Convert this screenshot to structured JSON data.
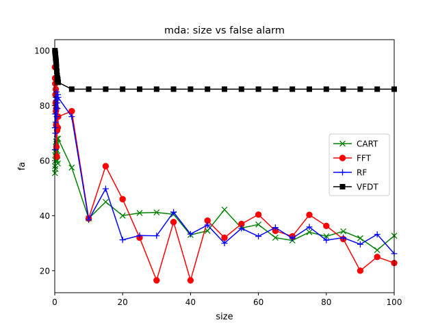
{
  "chart_data": {
    "type": "line",
    "title": "mda: size vs false alarm",
    "xlabel": "size",
    "ylabel": "fa",
    "xlim": [
      0,
      100
    ],
    "ylim": [
      12,
      104
    ],
    "xticks": [
      0,
      20,
      40,
      60,
      80,
      100
    ],
    "yticks": [
      20,
      40,
      60,
      80,
      100
    ],
    "grid": false,
    "legend_position": "center-right",
    "series": [
      {
        "name": "CART",
        "color": "#008000",
        "marker": "x",
        "x": [
          0.05,
          0.1,
          0.15,
          0.2,
          0.25,
          0.3,
          0.35,
          0.4,
          0.45,
          0.5,
          0.6,
          0.7,
          0.8,
          0.9,
          1,
          5,
          10,
          15,
          20,
          25,
          30,
          35,
          40,
          45,
          50,
          55,
          60,
          65,
          70,
          75,
          80,
          85,
          90,
          95,
          100
        ],
        "y": [
          55.5,
          58,
          62,
          57,
          60,
          63,
          65,
          67,
          64,
          66,
          68,
          60,
          62,
          59,
          68,
          57.5,
          39,
          45,
          40,
          41,
          41.2,
          40.5,
          33,
          34.5,
          42.2,
          35.5,
          36.8,
          32,
          31,
          34,
          32.5,
          34.3,
          31.8,
          27.5,
          32.7
        ]
      },
      {
        "name": "FFT",
        "color": "#ff0000",
        "marker": "o",
        "x": [
          0.05,
          0.1,
          0.15,
          0.2,
          0.25,
          0.3,
          0.35,
          0.4,
          0.45,
          0.5,
          0.6,
          0.7,
          0.8,
          0.9,
          1,
          5,
          10,
          15,
          20,
          25,
          30,
          35,
          40,
          45,
          50,
          55,
          60,
          65,
          70,
          75,
          80,
          85,
          90,
          95,
          100
        ],
        "y": [
          94,
          90,
          88,
          84,
          81,
          86,
          78,
          73,
          79,
          65,
          61.5,
          71,
          76,
          72,
          76,
          78,
          39,
          58,
          46,
          32,
          16.5,
          37.7,
          16.5,
          38.2,
          32,
          37,
          40.4,
          34.5,
          32.5,
          40.3,
          36.3,
          31.5,
          20,
          25,
          22.8
        ]
      },
      {
        "name": "RF",
        "color": "#0000ff",
        "marker": "+",
        "x": [
          0.05,
          0.1,
          0.15,
          0.2,
          0.25,
          0.3,
          0.35,
          0.4,
          0.45,
          0.5,
          0.6,
          0.7,
          0.8,
          0.9,
          1,
          5,
          10,
          15,
          20,
          25,
          30,
          35,
          40,
          45,
          50,
          55,
          60,
          65,
          70,
          75,
          80,
          85,
          90,
          95,
          100
        ],
        "y": [
          64,
          72,
          77,
          70,
          80,
          74,
          83,
          79,
          82,
          85,
          76,
          81,
          79,
          84,
          83,
          76,
          38.5,
          49.8,
          31.2,
          32.8,
          32.7,
          41.3,
          33.3,
          36.6,
          30,
          35.4,
          32.5,
          35.7,
          31.8,
          35.9,
          31.1,
          32,
          29.6,
          33.2,
          26.2
        ]
      },
      {
        "name": "VFDT",
        "color": "#000000",
        "marker": "s",
        "x": [
          0.05,
          0.1,
          0.15,
          0.2,
          0.25,
          0.3,
          0.35,
          0.4,
          0.45,
          0.5,
          0.6,
          0.7,
          0.8,
          0.9,
          1,
          5,
          10,
          15,
          20,
          25,
          30,
          35,
          40,
          45,
          50,
          55,
          60,
          65,
          70,
          75,
          80,
          85,
          90,
          95,
          100
        ],
        "y": [
          100,
          99.5,
          99,
          98.5,
          97.5,
          97,
          96.5,
          96,
          95,
          94,
          92.5,
          91,
          90,
          89.5,
          88.5,
          86,
          86,
          86,
          86,
          86,
          86,
          86,
          86,
          86,
          86,
          86,
          86,
          86,
          86,
          86,
          86,
          86,
          86,
          86,
          86
        ]
      }
    ]
  }
}
